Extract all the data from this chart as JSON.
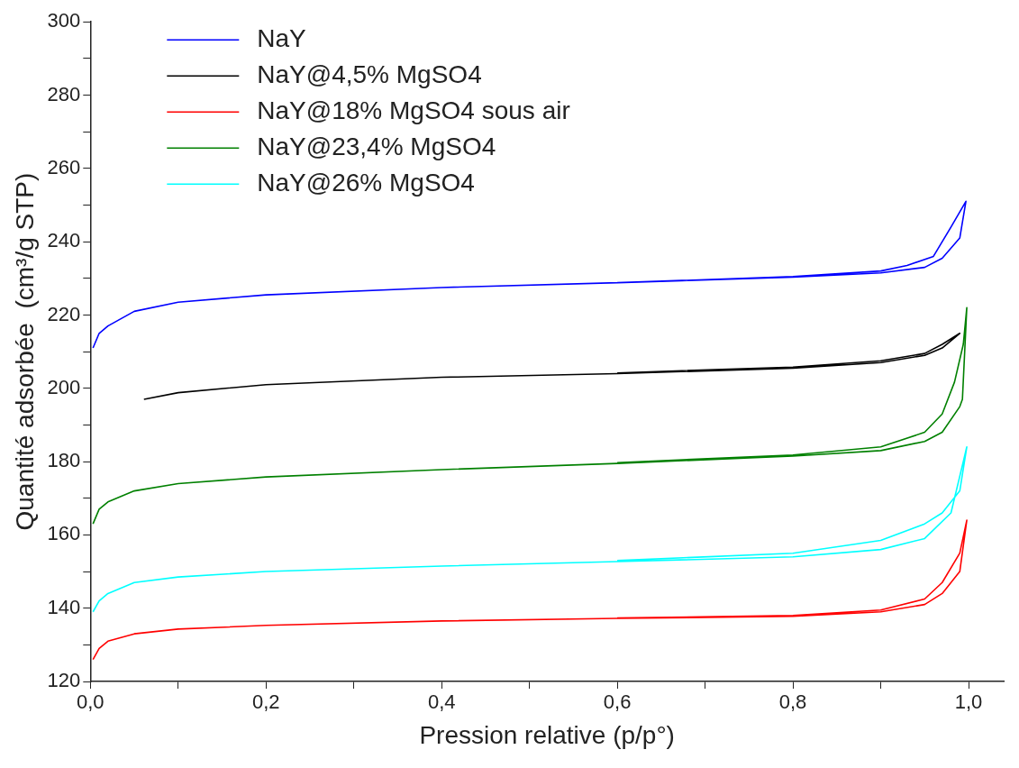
{
  "chart_data": {
    "type": "line",
    "xlabel": "Pression relative (p/p°)",
    "ylabel": "Quantité adsorbée  (cm³/g STP)",
    "xlim": [
      0,
      1.04
    ],
    "xticks": [
      {
        "value": 0,
        "label": "0,0"
      },
      {
        "value": 0.1,
        "label": null
      },
      {
        "value": 0.2,
        "label": "0,2"
      },
      {
        "value": 0.3,
        "label": null
      },
      {
        "value": 0.4,
        "label": "0,4"
      },
      {
        "value": 0.5,
        "label": null
      },
      {
        "value": 0.6,
        "label": "0,6"
      },
      {
        "value": 0.7,
        "label": null
      },
      {
        "value": 0.8,
        "label": "0,8"
      },
      {
        "value": 0.9,
        "label": null
      },
      {
        "value": 1,
        "label": "1,0"
      }
    ],
    "ylim": [
      120,
      300
    ],
    "yticks": [
      120,
      {
        "value": 130,
        "label": null
      },
      140,
      {
        "value": 150,
        "label": null
      },
      160,
      {
        "value": 170,
        "label": null
      },
      180,
      {
        "value": 190,
        "label": null
      },
      200,
      {
        "value": 210,
        "label": null
      },
      220,
      {
        "value": 230,
        "label": null
      },
      240,
      {
        "value": 250,
        "label": null
      },
      260,
      {
        "value": 270,
        "label": null
      },
      280,
      {
        "value": 290,
        "label": null
      },
      300
    ],
    "grid": false,
    "legend": "top left",
    "marker": "none",
    "line_style": "solid",
    "series": [
      {
        "name": "NaY",
        "color": "#0000ff",
        "x": [
          0.003,
          0.01,
          0.02,
          0.05,
          0.1,
          0.2,
          0.4,
          0.6,
          0.8,
          0.9,
          0.95,
          0.97,
          0.99,
          0.997,
          0.98,
          0.96,
          0.93,
          0.9,
          0.8,
          0.6
        ],
        "values": [
          211,
          215,
          217,
          221,
          223.5,
          225.5,
          227.5,
          228.8,
          230.3,
          231.5,
          233,
          235.5,
          241,
          251,
          244,
          236,
          233.5,
          232,
          230.5,
          228.8
        ]
      },
      {
        "name": "NaY@4,5% MgSO4",
        "color": "#000000",
        "x": [
          0.061,
          0.1,
          0.2,
          0.4,
          0.6,
          0.8,
          0.9,
          0.95,
          0.97,
          0.99,
          0.97,
          0.95,
          0.9,
          0.8,
          0.6
        ],
        "values": [
          197,
          198.8,
          201,
          203,
          204,
          205.5,
          207,
          209,
          211,
          215,
          212,
          209.5,
          207.5,
          205.8,
          204.2
        ]
      },
      {
        "name": "NaY@18% MgSO4 sous air",
        "color": "#ff0000",
        "x": [
          0.003,
          0.01,
          0.02,
          0.05,
          0.1,
          0.2,
          0.4,
          0.6,
          0.8,
          0.9,
          0.95,
          0.97,
          0.99,
          0.998,
          0.99,
          0.97,
          0.95,
          0.9,
          0.8,
          0.6
        ],
        "values": [
          126,
          129,
          131,
          133,
          134.3,
          135.3,
          136.5,
          137.2,
          137.8,
          139,
          141,
          144,
          150,
          164,
          155,
          147,
          142.5,
          139.5,
          138,
          137.3
        ]
      },
      {
        "name": "NaY@23,4% MgSO4",
        "color": "#008000",
        "x": [
          0.003,
          0.01,
          0.02,
          0.05,
          0.1,
          0.2,
          0.4,
          0.6,
          0.8,
          0.9,
          0.95,
          0.97,
          0.99,
          0.993,
          0.998,
          0.994,
          0.984,
          0.97,
          0.95,
          0.9,
          0.8,
          0.6
        ],
        "values": [
          163,
          167,
          169,
          172,
          174,
          175.8,
          177.8,
          179.5,
          181.5,
          183,
          185.5,
          188,
          195,
          197,
          222,
          212,
          201.7,
          193,
          188,
          184,
          181.8,
          179.7
        ]
      },
      {
        "name": "NaY@26% MgSO4",
        "color": "#00ffff",
        "x": [
          0.003,
          0.01,
          0.02,
          0.05,
          0.1,
          0.2,
          0.4,
          0.6,
          0.8,
          0.9,
          0.95,
          0.98,
          0.998,
          0.99,
          0.97,
          0.95,
          0.9,
          0.8,
          0.6
        ],
        "values": [
          139,
          142,
          144,
          147,
          148.5,
          150,
          151.5,
          152.7,
          154,
          156,
          159,
          166,
          184,
          172,
          166,
          163,
          158.5,
          155,
          153
        ]
      }
    ]
  }
}
